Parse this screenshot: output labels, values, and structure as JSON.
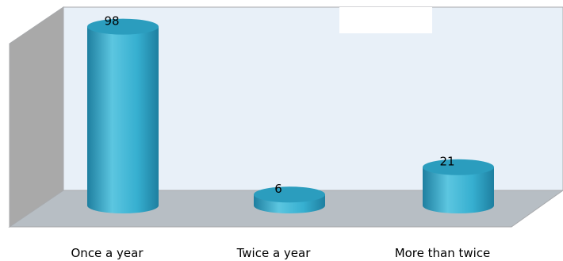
{
  "chart_data": {
    "type": "bar",
    "style": "3d-cylinder",
    "categories": [
      "Once a year",
      "Twice a year",
      "More than twice"
    ],
    "series": [
      {
        "values": [
          98,
          6,
          21
        ]
      }
    ],
    "ylim": [
      0,
      100
    ],
    "grid": false,
    "legend": "none",
    "title": "",
    "xlabel": "",
    "ylabel": ""
  },
  "colors": {
    "back_wall": "#e8f0f8",
    "side_wall": "#a9a9a9",
    "floor": "#b7bec4",
    "bar_light": "#5cc6e0",
    "bar_mid": "#36afd0",
    "bar_dark": "#1e7fa0",
    "bar_top": "#2b9dbe",
    "outline": "#a8aaad"
  }
}
